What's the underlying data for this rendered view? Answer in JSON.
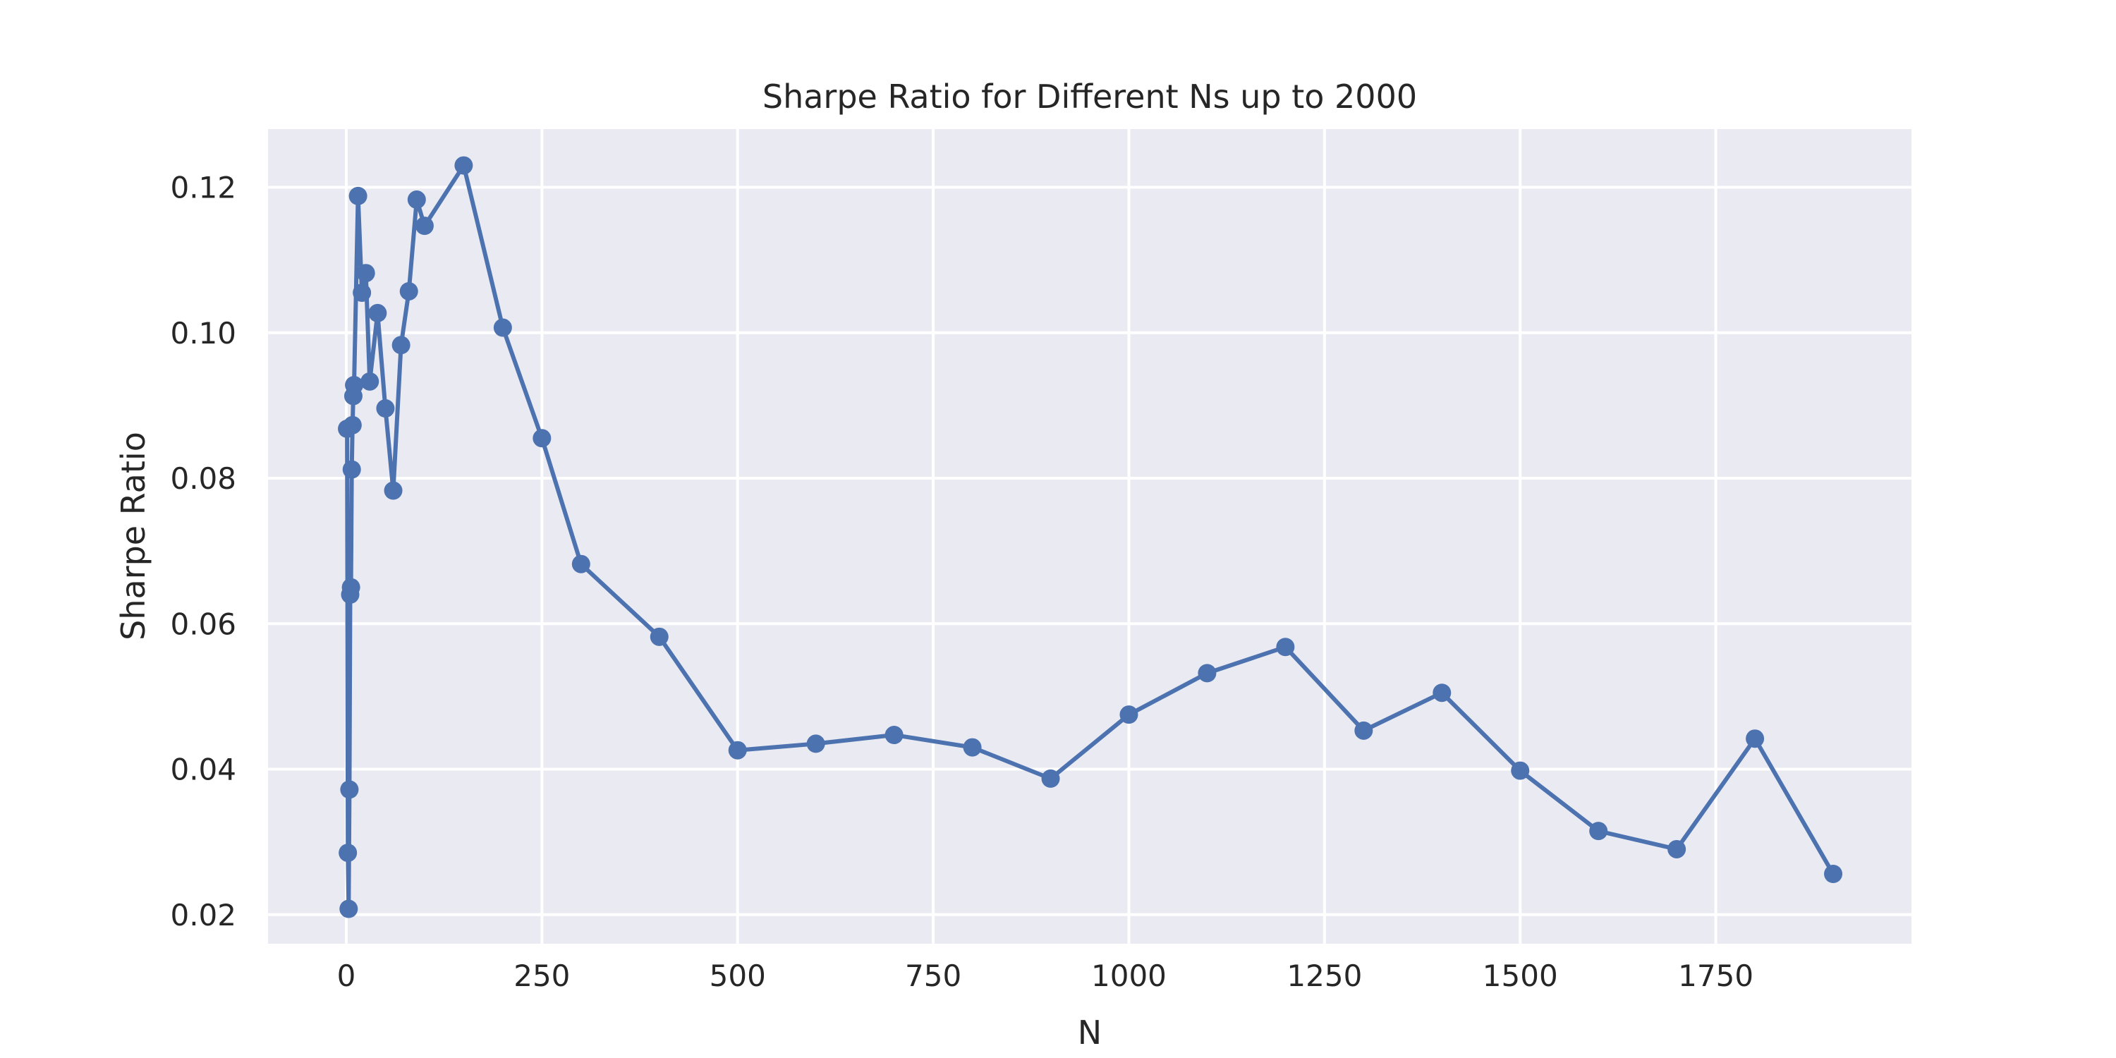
{
  "chart_data": {
    "type": "line",
    "title": "Sharpe Ratio for Different Ns up to 2000",
    "xlabel": "N",
    "ylabel": "Sharpe Ratio",
    "xlim": [
      -100,
      2000
    ],
    "ylim": [
      0.016,
      0.128
    ],
    "grid": true,
    "legend": "none",
    "x_ticks": [
      0,
      250,
      500,
      750,
      1000,
      1250,
      1500,
      1750
    ],
    "x_tick_labels": [
      "0",
      "250",
      "500",
      "750",
      "1000",
      "1250",
      "1500",
      "1750"
    ],
    "y_ticks": [
      0.02,
      0.04,
      0.06,
      0.08,
      0.1,
      0.12
    ],
    "y_tick_labels": [
      "0.02",
      "0.04",
      "0.06",
      "0.08",
      "0.10",
      "0.12"
    ],
    "colors": {
      "line": "#4c72b0",
      "background": "#eaeaf2",
      "grid": "#ffffff",
      "text": "#262626"
    },
    "series": [
      {
        "x": [
          1,
          2,
          3,
          4,
          5,
          6,
          7,
          8,
          9,
          10,
          15,
          20,
          25,
          30,
          40,
          50,
          60,
          70,
          80,
          90,
          100,
          150,
          200,
          250,
          300,
          400,
          500,
          600,
          700,
          800,
          900,
          1000,
          1100,
          1200,
          1300,
          1400,
          1500,
          1600,
          1700,
          1800,
          1900
        ],
        "y": [
          0.0868,
          0.0285,
          0.0208,
          0.0372,
          0.064,
          0.065,
          0.0812,
          0.0873,
          0.0913,
          0.0928,
          0.1188,
          0.1055,
          0.1082,
          0.0933,
          0.1027,
          0.0896,
          0.0783,
          0.0983,
          0.1057,
          0.1183,
          0.1147,
          0.123,
          0.1007,
          0.0855,
          0.0682,
          0.0582,
          0.0426,
          0.0435,
          0.0447,
          0.043,
          0.0387,
          0.0475,
          0.0532,
          0.0568,
          0.0453,
          0.0505,
          0.0398,
          0.0315,
          0.029,
          0.0442,
          0.0256
        ]
      }
    ]
  }
}
